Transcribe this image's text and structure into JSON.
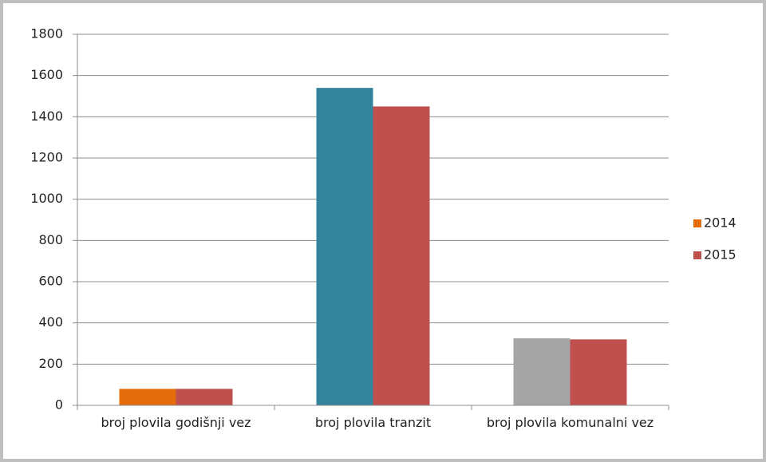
{
  "chart_data": {
    "type": "bar",
    "categories": [
      "broj plovila godišnji vez",
      "broj plovila tranzit",
      "broj plovila komunalni vez"
    ],
    "series": [
      {
        "name": "2014",
        "color": "#e46c0a",
        "point_colors": [
          "#e46c0a",
          "#31849b",
          "#a5a5a5"
        ],
        "values": [
          80,
          1540,
          325
        ]
      },
      {
        "name": "2015",
        "color": "#c0504d",
        "values": [
          80,
          1450,
          320
        ]
      }
    ],
    "ylim": [
      0,
      1800
    ],
    "yticks": [
      0,
      200,
      400,
      600,
      800,
      1000,
      1200,
      1400,
      1600,
      1800
    ],
    "grid": true,
    "legend": "right"
  }
}
